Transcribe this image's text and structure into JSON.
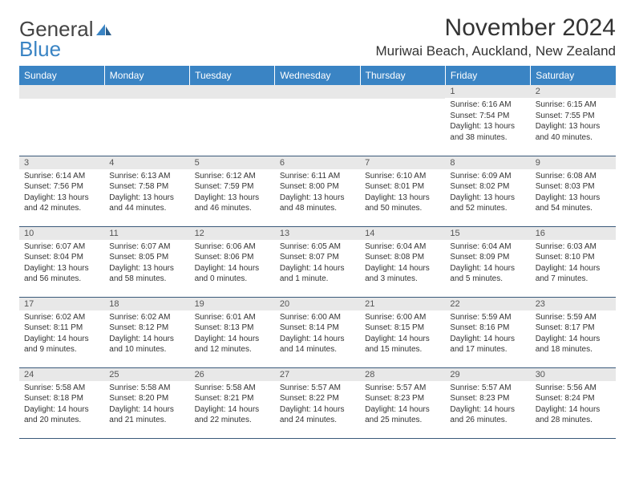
{
  "logo": {
    "text1": "General",
    "text2": "Blue"
  },
  "title": "November 2024",
  "location": "Muriwai Beach, Auckland, New Zealand",
  "dayHeaders": [
    "Sunday",
    "Monday",
    "Tuesday",
    "Wednesday",
    "Thursday",
    "Friday",
    "Saturday"
  ],
  "colors": {
    "headerBg": "#3a84c4",
    "headerText": "#ffffff",
    "dayNumBg": "#e8e8e8",
    "text": "#333333",
    "rowBorder": "#3a5a7a"
  },
  "weeks": [
    [
      {
        "num": "",
        "sunrise": "",
        "sunset": "",
        "daylight": ""
      },
      {
        "num": "",
        "sunrise": "",
        "sunset": "",
        "daylight": ""
      },
      {
        "num": "",
        "sunrise": "",
        "sunset": "",
        "daylight": ""
      },
      {
        "num": "",
        "sunrise": "",
        "sunset": "",
        "daylight": ""
      },
      {
        "num": "",
        "sunrise": "",
        "sunset": "",
        "daylight": ""
      },
      {
        "num": "1",
        "sunrise": "Sunrise: 6:16 AM",
        "sunset": "Sunset: 7:54 PM",
        "daylight": "Daylight: 13 hours and 38 minutes."
      },
      {
        "num": "2",
        "sunrise": "Sunrise: 6:15 AM",
        "sunset": "Sunset: 7:55 PM",
        "daylight": "Daylight: 13 hours and 40 minutes."
      }
    ],
    [
      {
        "num": "3",
        "sunrise": "Sunrise: 6:14 AM",
        "sunset": "Sunset: 7:56 PM",
        "daylight": "Daylight: 13 hours and 42 minutes."
      },
      {
        "num": "4",
        "sunrise": "Sunrise: 6:13 AM",
        "sunset": "Sunset: 7:58 PM",
        "daylight": "Daylight: 13 hours and 44 minutes."
      },
      {
        "num": "5",
        "sunrise": "Sunrise: 6:12 AM",
        "sunset": "Sunset: 7:59 PM",
        "daylight": "Daylight: 13 hours and 46 minutes."
      },
      {
        "num": "6",
        "sunrise": "Sunrise: 6:11 AM",
        "sunset": "Sunset: 8:00 PM",
        "daylight": "Daylight: 13 hours and 48 minutes."
      },
      {
        "num": "7",
        "sunrise": "Sunrise: 6:10 AM",
        "sunset": "Sunset: 8:01 PM",
        "daylight": "Daylight: 13 hours and 50 minutes."
      },
      {
        "num": "8",
        "sunrise": "Sunrise: 6:09 AM",
        "sunset": "Sunset: 8:02 PM",
        "daylight": "Daylight: 13 hours and 52 minutes."
      },
      {
        "num": "9",
        "sunrise": "Sunrise: 6:08 AM",
        "sunset": "Sunset: 8:03 PM",
        "daylight": "Daylight: 13 hours and 54 minutes."
      }
    ],
    [
      {
        "num": "10",
        "sunrise": "Sunrise: 6:07 AM",
        "sunset": "Sunset: 8:04 PM",
        "daylight": "Daylight: 13 hours and 56 minutes."
      },
      {
        "num": "11",
        "sunrise": "Sunrise: 6:07 AM",
        "sunset": "Sunset: 8:05 PM",
        "daylight": "Daylight: 13 hours and 58 minutes."
      },
      {
        "num": "12",
        "sunrise": "Sunrise: 6:06 AM",
        "sunset": "Sunset: 8:06 PM",
        "daylight": "Daylight: 14 hours and 0 minutes."
      },
      {
        "num": "13",
        "sunrise": "Sunrise: 6:05 AM",
        "sunset": "Sunset: 8:07 PM",
        "daylight": "Daylight: 14 hours and 1 minute."
      },
      {
        "num": "14",
        "sunrise": "Sunrise: 6:04 AM",
        "sunset": "Sunset: 8:08 PM",
        "daylight": "Daylight: 14 hours and 3 minutes."
      },
      {
        "num": "15",
        "sunrise": "Sunrise: 6:04 AM",
        "sunset": "Sunset: 8:09 PM",
        "daylight": "Daylight: 14 hours and 5 minutes."
      },
      {
        "num": "16",
        "sunrise": "Sunrise: 6:03 AM",
        "sunset": "Sunset: 8:10 PM",
        "daylight": "Daylight: 14 hours and 7 minutes."
      }
    ],
    [
      {
        "num": "17",
        "sunrise": "Sunrise: 6:02 AM",
        "sunset": "Sunset: 8:11 PM",
        "daylight": "Daylight: 14 hours and 9 minutes."
      },
      {
        "num": "18",
        "sunrise": "Sunrise: 6:02 AM",
        "sunset": "Sunset: 8:12 PM",
        "daylight": "Daylight: 14 hours and 10 minutes."
      },
      {
        "num": "19",
        "sunrise": "Sunrise: 6:01 AM",
        "sunset": "Sunset: 8:13 PM",
        "daylight": "Daylight: 14 hours and 12 minutes."
      },
      {
        "num": "20",
        "sunrise": "Sunrise: 6:00 AM",
        "sunset": "Sunset: 8:14 PM",
        "daylight": "Daylight: 14 hours and 14 minutes."
      },
      {
        "num": "21",
        "sunrise": "Sunrise: 6:00 AM",
        "sunset": "Sunset: 8:15 PM",
        "daylight": "Daylight: 14 hours and 15 minutes."
      },
      {
        "num": "22",
        "sunrise": "Sunrise: 5:59 AM",
        "sunset": "Sunset: 8:16 PM",
        "daylight": "Daylight: 14 hours and 17 minutes."
      },
      {
        "num": "23",
        "sunrise": "Sunrise: 5:59 AM",
        "sunset": "Sunset: 8:17 PM",
        "daylight": "Daylight: 14 hours and 18 minutes."
      }
    ],
    [
      {
        "num": "24",
        "sunrise": "Sunrise: 5:58 AM",
        "sunset": "Sunset: 8:18 PM",
        "daylight": "Daylight: 14 hours and 20 minutes."
      },
      {
        "num": "25",
        "sunrise": "Sunrise: 5:58 AM",
        "sunset": "Sunset: 8:20 PM",
        "daylight": "Daylight: 14 hours and 21 minutes."
      },
      {
        "num": "26",
        "sunrise": "Sunrise: 5:58 AM",
        "sunset": "Sunset: 8:21 PM",
        "daylight": "Daylight: 14 hours and 22 minutes."
      },
      {
        "num": "27",
        "sunrise": "Sunrise: 5:57 AM",
        "sunset": "Sunset: 8:22 PM",
        "daylight": "Daylight: 14 hours and 24 minutes."
      },
      {
        "num": "28",
        "sunrise": "Sunrise: 5:57 AM",
        "sunset": "Sunset: 8:23 PM",
        "daylight": "Daylight: 14 hours and 25 minutes."
      },
      {
        "num": "29",
        "sunrise": "Sunrise: 5:57 AM",
        "sunset": "Sunset: 8:23 PM",
        "daylight": "Daylight: 14 hours and 26 minutes."
      },
      {
        "num": "30",
        "sunrise": "Sunrise: 5:56 AM",
        "sunset": "Sunset: 8:24 PM",
        "daylight": "Daylight: 14 hours and 28 minutes."
      }
    ]
  ]
}
